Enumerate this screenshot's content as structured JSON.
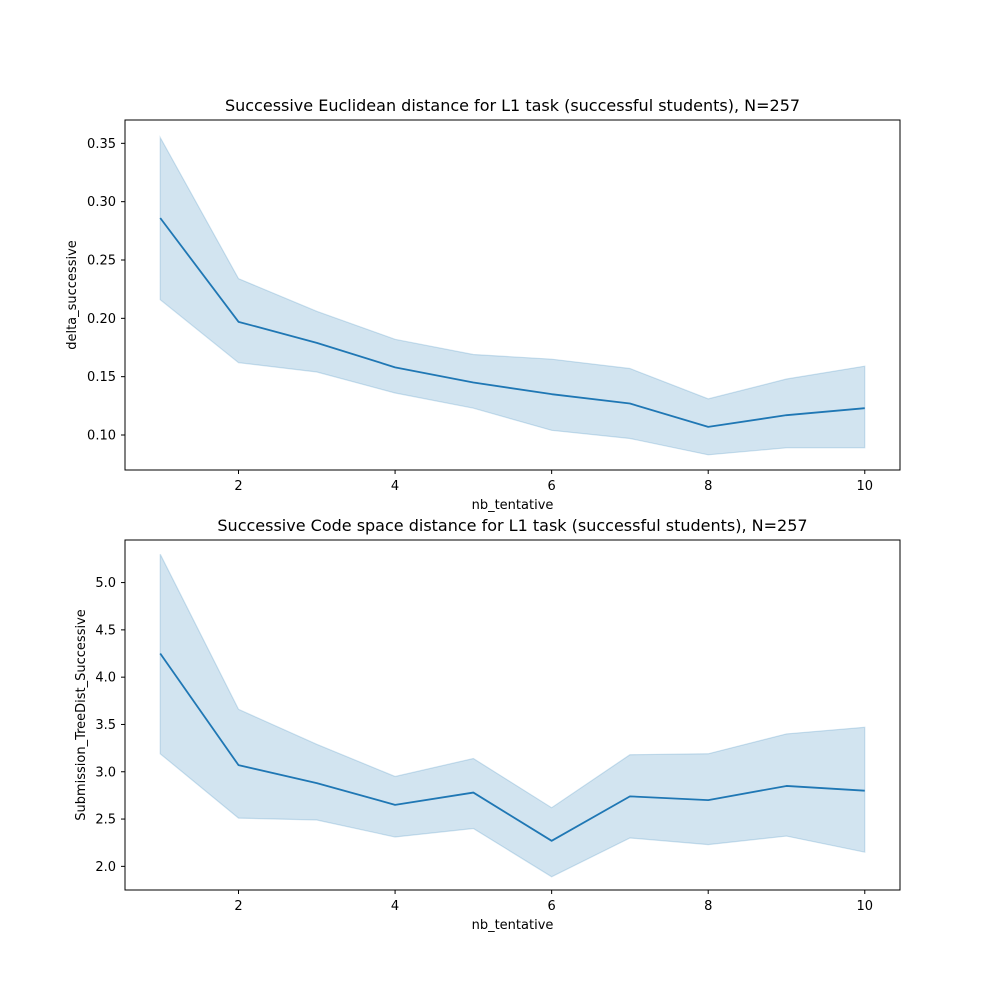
{
  "colors": {
    "line": "#1f77b4",
    "band": "#1f77b4"
  },
  "chart_data": [
    {
      "type": "line",
      "title": "Successive Euclidean distance for L1 task (successful students), N=257",
      "xlabel": "nb_tentative",
      "ylabel": "delta_successive",
      "xlim": [
        0.55,
        10.45
      ],
      "ylim": [
        0.07,
        0.37
      ],
      "xticks": [
        2,
        4,
        6,
        8,
        10
      ],
      "xtick_labels": [
        "2",
        "4",
        "6",
        "8",
        "10"
      ],
      "yticks": [
        0.1,
        0.15,
        0.2,
        0.25,
        0.3,
        0.35
      ],
      "ytick_labels": [
        "0.10",
        "0.15",
        "0.20",
        "0.25",
        "0.30",
        "0.35"
      ],
      "grid": false,
      "x": [
        1,
        2,
        3,
        4,
        5,
        6,
        7,
        8,
        9,
        10
      ],
      "series": [
        {
          "values": [
            0.286,
            0.197,
            0.179,
            0.158,
            0.145,
            0.135,
            0.127,
            0.107,
            0.117,
            0.123
          ],
          "ci_lower": [
            0.216,
            0.162,
            0.154,
            0.136,
            0.123,
            0.104,
            0.097,
            0.083,
            0.089,
            0.089
          ],
          "ci_upper": [
            0.355,
            0.234,
            0.206,
            0.182,
            0.169,
            0.165,
            0.157,
            0.131,
            0.148,
            0.159
          ]
        }
      ]
    },
    {
      "type": "line",
      "title": "Successive Code space distance for L1 task (successful students), N=257",
      "xlabel": "nb_tentative",
      "ylabel": "Submission_TreeDist_Successive",
      "xlim": [
        0.55,
        10.45
      ],
      "ylim": [
        1.75,
        5.45
      ],
      "xticks": [
        2,
        4,
        6,
        8,
        10
      ],
      "xtick_labels": [
        "2",
        "4",
        "6",
        "8",
        "10"
      ],
      "yticks": [
        2.0,
        2.5,
        3.0,
        3.5,
        4.0,
        4.5,
        5.0
      ],
      "ytick_labels": [
        "2.0",
        "2.5",
        "3.0",
        "3.5",
        "4.0",
        "4.5",
        "5.0"
      ],
      "grid": false,
      "x": [
        1,
        2,
        3,
        4,
        5,
        6,
        7,
        8,
        9,
        10
      ],
      "series": [
        {
          "values": [
            4.25,
            3.07,
            2.88,
            2.65,
            2.78,
            2.27,
            2.74,
            2.7,
            2.85,
            2.8
          ],
          "ci_lower": [
            3.19,
            2.51,
            2.49,
            2.31,
            2.4,
            1.89,
            2.3,
            2.23,
            2.32,
            2.15
          ],
          "ci_upper": [
            5.3,
            3.66,
            3.29,
            2.95,
            3.14,
            2.62,
            3.18,
            3.19,
            3.4,
            3.47
          ]
        }
      ]
    }
  ]
}
